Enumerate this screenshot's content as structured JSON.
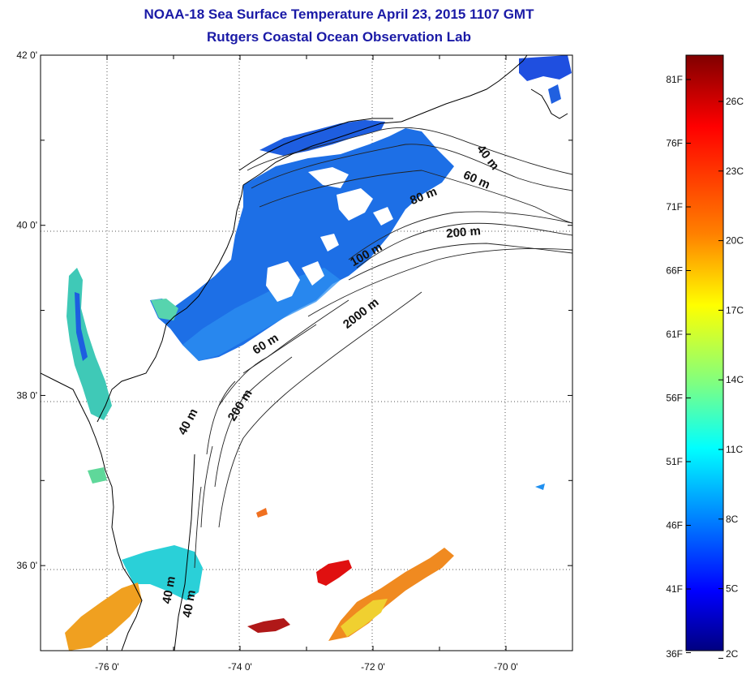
{
  "title": "NOAA-18 Sea Surface Temperature April 23, 2015 1107 GMT",
  "subtitle": "Rutgers Coastal Ocean Observation Lab",
  "lat_ticks": [
    {
      "label": "42 0'",
      "lat": 42
    },
    {
      "label": "40 0'",
      "lat": 40
    },
    {
      "label": "38 0'",
      "lat": 38
    },
    {
      "label": "36 0'",
      "lat": 36
    }
  ],
  "lon_ticks": [
    {
      "label": "-76 0'",
      "lon": -76
    },
    {
      "label": "-74 0'",
      "lon": -74
    },
    {
      "label": "-72 0'",
      "lon": -72
    },
    {
      "label": "-70 0'",
      "lon": -70
    }
  ],
  "contour_labels": [
    {
      "text": "40 m",
      "rot": 52
    },
    {
      "text": "60 m",
      "rot": 24
    },
    {
      "text": "80 m",
      "rot": -22
    },
    {
      "text": "200 m",
      "rot": -5
    },
    {
      "text": "100 m",
      "rot": -30
    },
    {
      "text": "2000 m",
      "rot": -38
    },
    {
      "text": "60 m",
      "rot": -32
    },
    {
      "text": "40 m",
      "rot": -62
    },
    {
      "text": "200 m",
      "rot": -58
    },
    {
      "text": "40 m",
      "rot": -80
    }
  ],
  "colorbar": {
    "colors": [
      "#800000",
      "#ff0000",
      "#ff8000",
      "#ffff00",
      "#80ff80",
      "#00ffff",
      "#0080ff",
      "#0000ff",
      "#000080"
    ],
    "f_labels": [
      "81F",
      "76F",
      "71F",
      "66F",
      "61F",
      "56F",
      "51F",
      "46F",
      "41F",
      "36F"
    ],
    "c_labels": [
      "26C",
      "23C",
      "20C",
      "17C",
      "14C",
      "11C",
      "8C",
      "5C",
      "2C"
    ]
  }
}
